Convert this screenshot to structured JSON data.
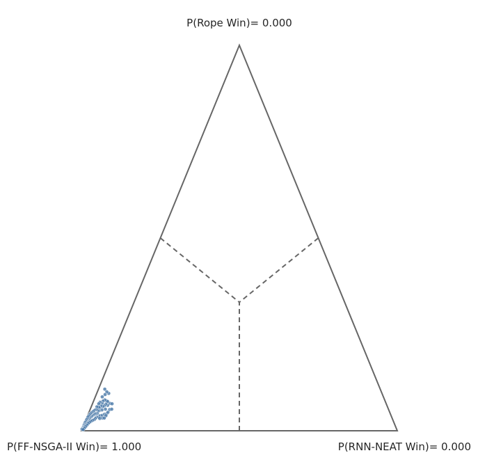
{
  "chart_data": {
    "type": "scatter",
    "subtype": "ternary-simplex",
    "labels": {
      "top": "P(Rope Win)= 0.000",
      "left": "P(FF-NSGA-II Win)= 1.000",
      "right": "P(RNN-NEAT Win)= 0.000"
    },
    "axes": [
      "FF-NSGA-II",
      "RNN-NEAT",
      "Rope"
    ],
    "region_dividers": "dashed lines from edge midpoints to centroid",
    "point_color": "#4878a8",
    "point_edge": "#ffffff",
    "triangle_color": "#666666",
    "points_description": "barycentric samples (FF-NSGA-II, RNN-NEAT, Rope), concentrated near the FF-NSGA-II vertex",
    "points": [
      [
        0.865,
        0.038,
        0.097
      ],
      [
        0.869,
        0.03,
        0.101
      ],
      [
        0.872,
        0.02,
        0.108
      ],
      [
        0.878,
        0.028,
        0.094
      ],
      [
        0.882,
        0.04,
        0.078
      ],
      [
        0.874,
        0.055,
        0.071
      ],
      [
        0.868,
        0.062,
        0.07
      ],
      [
        0.879,
        0.045,
        0.076
      ],
      [
        0.886,
        0.034,
        0.08
      ],
      [
        0.89,
        0.022,
        0.088
      ],
      [
        0.893,
        0.03,
        0.077
      ],
      [
        0.884,
        0.05,
        0.066
      ],
      [
        0.888,
        0.043,
        0.069
      ],
      [
        0.895,
        0.04,
        0.065
      ],
      [
        0.899,
        0.03,
        0.071
      ],
      [
        0.904,
        0.022,
        0.074
      ],
      [
        0.901,
        0.036,
        0.063
      ],
      [
        0.896,
        0.048,
        0.056
      ],
      [
        0.906,
        0.03,
        0.064
      ],
      [
        0.91,
        0.02,
        0.07
      ],
      [
        0.912,
        0.028,
        0.06
      ],
      [
        0.908,
        0.038,
        0.054
      ],
      [
        0.915,
        0.024,
        0.061
      ],
      [
        0.918,
        0.03,
        0.052
      ],
      [
        0.92,
        0.018,
        0.062
      ],
      [
        0.922,
        0.026,
        0.052
      ],
      [
        0.925,
        0.02,
        0.055
      ],
      [
        0.927,
        0.028,
        0.045
      ],
      [
        0.93,
        0.016,
        0.054
      ],
      [
        0.932,
        0.024,
        0.044
      ],
      [
        0.934,
        0.014,
        0.052
      ],
      [
        0.936,
        0.02,
        0.044
      ],
      [
        0.938,
        0.012,
        0.05
      ],
      [
        0.94,
        0.018,
        0.042
      ],
      [
        0.942,
        0.01,
        0.048
      ],
      [
        0.944,
        0.016,
        0.04
      ],
      [
        0.946,
        0.008,
        0.046
      ],
      [
        0.948,
        0.014,
        0.038
      ],
      [
        0.95,
        0.006,
        0.044
      ],
      [
        0.952,
        0.012,
        0.036
      ],
      [
        0.954,
        0.005,
        0.041
      ],
      [
        0.956,
        0.01,
        0.034
      ],
      [
        0.958,
        0.004,
        0.038
      ],
      [
        0.96,
        0.009,
        0.031
      ],
      [
        0.962,
        0.003,
        0.035
      ],
      [
        0.964,
        0.008,
        0.028
      ],
      [
        0.966,
        0.003,
        0.031
      ],
      [
        0.968,
        0.006,
        0.026
      ],
      [
        0.97,
        0.002,
        0.028
      ],
      [
        0.972,
        0.005,
        0.023
      ],
      [
        0.974,
        0.002,
        0.024
      ],
      [
        0.976,
        0.004,
        0.02
      ],
      [
        0.978,
        0.001,
        0.021
      ],
      [
        0.98,
        0.003,
        0.017
      ],
      [
        0.982,
        0.001,
        0.017
      ],
      [
        0.984,
        0.002,
        0.014
      ],
      [
        0.986,
        0.001,
        0.013
      ],
      [
        0.988,
        0.002,
        0.01
      ],
      [
        0.99,
        0.001,
        0.009
      ],
      [
        0.992,
        0.001,
        0.007
      ],
      [
        0.994,
        0.001,
        0.005
      ],
      [
        0.996,
        0.0,
        0.004
      ],
      [
        0.935,
        0.03,
        0.035
      ],
      [
        0.928,
        0.036,
        0.036
      ],
      [
        0.921,
        0.04,
        0.039
      ],
      [
        0.914,
        0.046,
        0.04
      ],
      [
        0.905,
        0.052,
        0.043
      ],
      [
        0.898,
        0.058,
        0.044
      ],
      [
        0.917,
        0.05,
        0.033
      ],
      [
        0.926,
        0.042,
        0.032
      ],
      [
        0.94,
        0.028,
        0.032
      ],
      [
        0.945,
        0.026,
        0.029
      ],
      [
        0.951,
        0.022,
        0.027
      ],
      [
        0.957,
        0.018,
        0.025
      ],
      [
        0.963,
        0.015,
        0.022
      ],
      [
        0.969,
        0.012,
        0.019
      ],
      [
        0.975,
        0.01,
        0.015
      ],
      [
        0.981,
        0.008,
        0.011
      ],
      [
        0.987,
        0.006,
        0.007
      ],
      [
        0.993,
        0.004,
        0.003
      ],
      [
        0.883,
        0.062,
        0.055
      ],
      [
        0.876,
        0.068,
        0.056
      ],
      [
        0.892,
        0.06,
        0.048
      ],
      [
        0.903,
        0.058,
        0.039
      ],
      [
        0.911,
        0.056,
        0.033
      ]
    ]
  }
}
